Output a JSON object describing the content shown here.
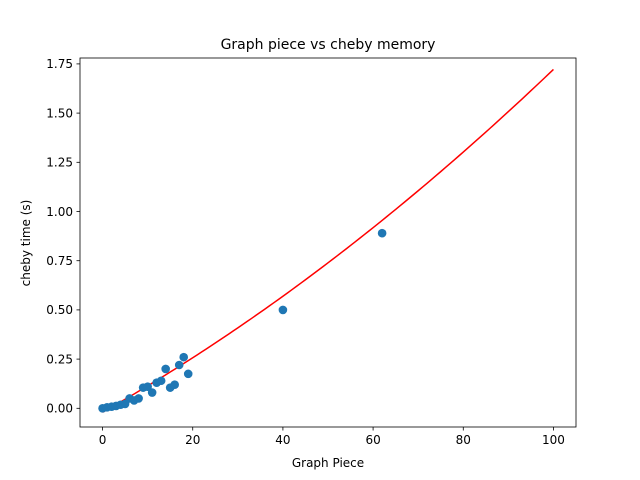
{
  "chart_data": {
    "type": "scatter",
    "title": "Graph piece vs cheby memory",
    "xlabel": "Graph Piece",
    "ylabel": "cheby time (s)",
    "xlim": [
      -5,
      105
    ],
    "ylim": [
      -0.095,
      1.78
    ],
    "xticks": [
      0,
      20,
      40,
      60,
      80,
      100
    ],
    "xtick_labels": [
      "0",
      "20",
      "40",
      "60",
      "80",
      "100"
    ],
    "yticks": [
      0.0,
      0.25,
      0.5,
      0.75,
      1.0,
      1.25,
      1.5,
      1.75
    ],
    "ytick_labels": [
      "0.00",
      "0.25",
      "0.50",
      "0.75",
      "1.00",
      "1.25",
      "1.50",
      "1.75"
    ],
    "grid": false,
    "series": [
      {
        "kind": "scatter",
        "color": "#1f77b4",
        "points": [
          [
            0,
            0.0
          ],
          [
            1,
            0.005
          ],
          [
            2,
            0.008
          ],
          [
            3,
            0.012
          ],
          [
            4,
            0.018
          ],
          [
            5,
            0.022
          ],
          [
            6,
            0.05
          ],
          [
            7,
            0.04
          ],
          [
            8,
            0.05
          ],
          [
            9,
            0.105
          ],
          [
            10,
            0.11
          ],
          [
            11,
            0.08
          ],
          [
            12,
            0.13
          ],
          [
            13,
            0.14
          ],
          [
            14,
            0.2
          ],
          [
            15,
            0.105
          ],
          [
            16,
            0.12
          ],
          [
            17,
            0.22
          ],
          [
            18,
            0.26
          ],
          [
            19,
            0.175
          ],
          [
            40,
            0.5
          ],
          [
            62,
            0.89
          ]
        ]
      },
      {
        "kind": "line",
        "color": "#ff0000",
        "fit": "quadratic",
        "x_range": [
          0,
          100
        ],
        "coefficients": {
          "a": 4.47e-05,
          "b": 0.01295,
          "c": -0.02
        }
      }
    ]
  }
}
